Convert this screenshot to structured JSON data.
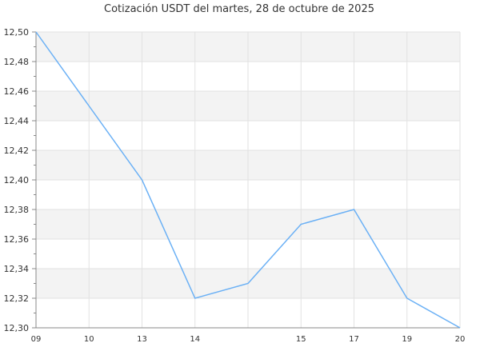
{
  "chart_data": {
    "type": "line",
    "title": "Cotización USDT del martes, 28 de octubre de 2025",
    "categories": [
      "09",
      "10",
      "13",
      "14",
      "",
      "15",
      "17",
      "19",
      "20"
    ],
    "series": [
      {
        "values": [
          12.5,
          12.45,
          12.4,
          12.32,
          12.33,
          12.37,
          12.38,
          12.32,
          12.3
        ]
      }
    ],
    "ylim": [
      12.3,
      12.5
    ],
    "yticks": [
      "12,30",
      "12,32",
      "12,34",
      "12,36",
      "12,38",
      "12,40",
      "12,42",
      "12,44",
      "12,46",
      "12,48",
      "12,50"
    ],
    "grid": true,
    "line_color": "#6ab0f5",
    "band_color": "#f3f3f3"
  }
}
